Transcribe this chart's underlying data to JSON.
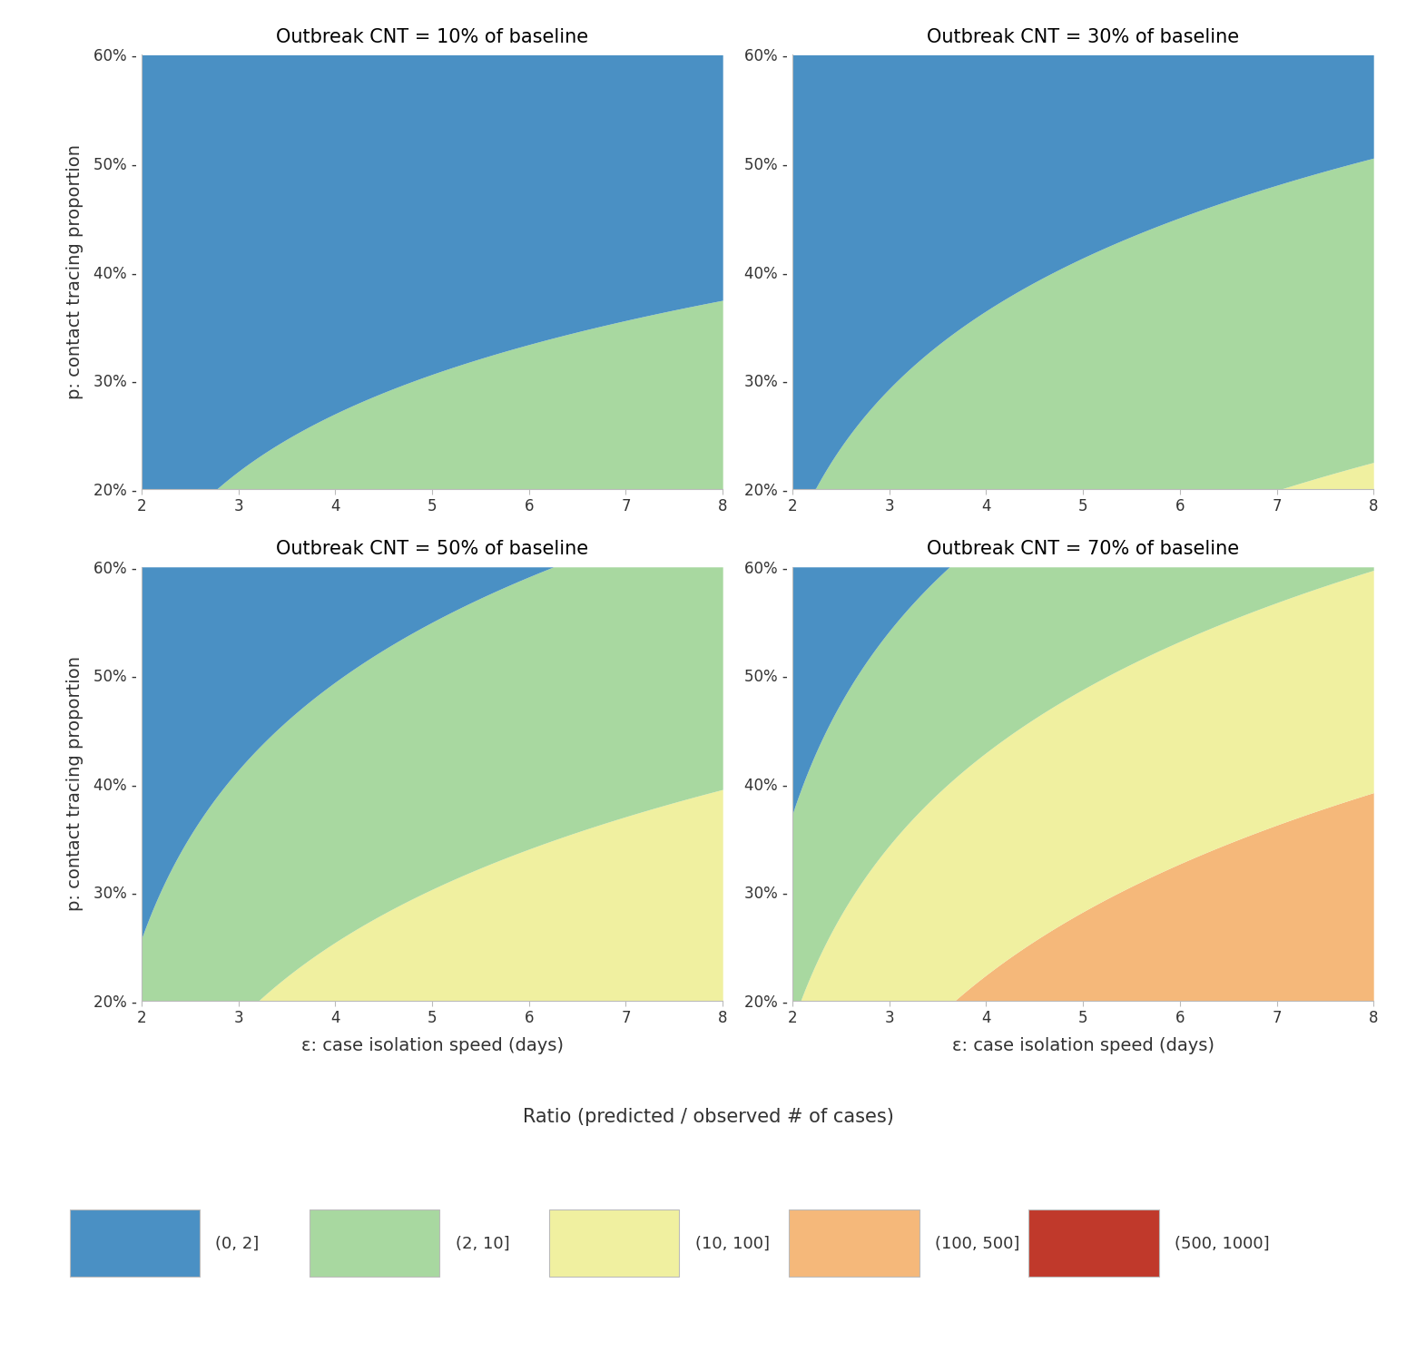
{
  "panels": [
    {
      "title": "Outbreak CNT = 10% of baseline",
      "cnt": 0.1
    },
    {
      "title": "Outbreak CNT = 30% of baseline",
      "cnt": 0.3
    },
    {
      "title": "Outbreak CNT = 50% of baseline",
      "cnt": 0.5
    },
    {
      "title": "Outbreak CNT = 70% of baseline",
      "cnt": 0.7
    }
  ],
  "x_label": "ε: case isolation speed (days)",
  "y_label": "p: contact tracing proportion",
  "x_ticks": [
    2,
    3,
    4,
    5,
    6,
    7,
    8
  ],
  "y_ticks": [
    0.2,
    0.3,
    0.4,
    0.5,
    0.6
  ],
  "y_min": 0.2,
  "y_max": 0.6,
  "x_min": 2,
  "x_max": 8,
  "colors": {
    "blue": "#4a90c4",
    "green": "#a8d8a0",
    "yellow": "#f0f0a0",
    "orange": "#f5b87a",
    "red": "#c0392b"
  },
  "legend_title": "Ratio (predicted / observed # of cases)",
  "legend_labels": [
    "(0, 2]",
    "(2, 10]",
    "(10, 100]",
    "(100, 500]",
    "(500, 1000]"
  ],
  "legend_colors": [
    "#4a90c4",
    "#a8d8a0",
    "#f0f0a0",
    "#f5b87a",
    "#c0392b"
  ],
  "background": "#ffffff",
  "title_fontsize": 15,
  "label_fontsize": 14,
  "tick_fontsize": 12,
  "legend_title_fontsize": 15,
  "legend_fontsize": 13,
  "panels_layout": [
    {
      "cnt": 0.1,
      "boundaries": [
        {
          "type": "loglog",
          "a": 0.155,
          "b": 0.115,
          "c": 1.3
        }
      ],
      "region_colors": [
        "green",
        "blue"
      ]
    },
    {
      "cnt": 0.3,
      "boundaries": [
        {
          "type": "loglog",
          "a": -0.08,
          "b": 0.16,
          "c": 1.3
        },
        {
          "type": "loglog",
          "a": 0.21,
          "b": 0.155,
          "c": 1.3
        }
      ],
      "region_colors": [
        "yellow",
        "green",
        "blue"
      ]
    },
    {
      "cnt": 0.5,
      "boundaries": [
        {
          "type": "loglog",
          "a": -0.3,
          "b": 0.185,
          "c": 1.3
        },
        {
          "type": "loglog",
          "a": 0.1,
          "b": 0.155,
          "c": 1.3
        },
        {
          "type": "loglog",
          "a": 0.32,
          "b": 0.175,
          "c": 1.3
        }
      ],
      "region_colors": [
        "orange",
        "yellow",
        "green",
        "blue"
      ]
    },
    {
      "cnt": 0.7,
      "boundaries": [
        {
          "type": "loglog",
          "a": -0.35,
          "b": 0.195,
          "c": 1.3
        },
        {
          "type": "loglog",
          "a": 0.04,
          "b": 0.185,
          "c": 1.3
        },
        {
          "type": "loglog",
          "a": 0.245,
          "b": 0.185,
          "c": 1.3
        },
        {
          "type": "loglog",
          "a": 0.44,
          "b": 0.19,
          "c": 1.3
        }
      ],
      "region_colors": [
        "red",
        "orange",
        "yellow",
        "green",
        "blue"
      ]
    }
  ]
}
